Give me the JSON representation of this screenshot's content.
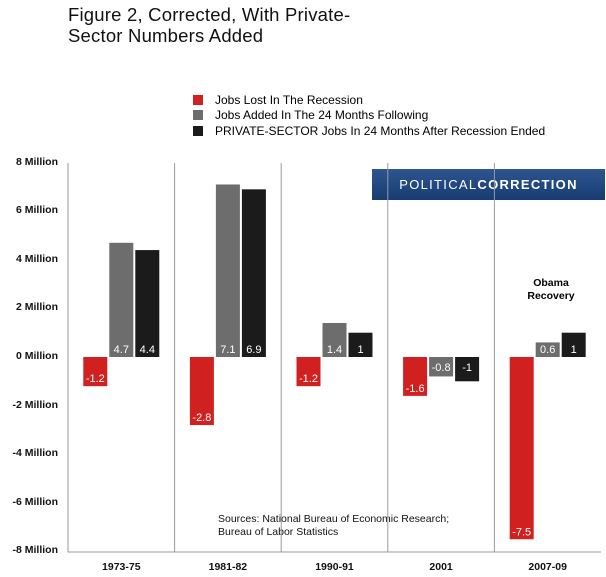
{
  "title_lines": [
    "Figure 2, Corrected, With Private-",
    "Sector Numbers Added"
  ],
  "brand": {
    "part1": "POLITICAL",
    "part2": "CORRECTION"
  },
  "annotation_lines": [
    "Obama",
    "Recovery"
  ],
  "source_lines": [
    "Sources: National Bureau of Economic Research;",
    "Bureau of Labor Statistics"
  ],
  "colors": {
    "lost": "#d0201f",
    "added": "#6d6d6d",
    "private": "#1b1b1b"
  },
  "chart_data": {
    "type": "bar",
    "title": "Figure 2, Corrected, With Private-Sector Numbers Added",
    "categories": [
      "1973-75",
      "1981-82",
      "1990-91",
      "2001",
      "2007-09"
    ],
    "series": [
      {
        "name": "Jobs Lost In The Recession",
        "color": "#d0201f",
        "values": [
          -1.2,
          -2.8,
          -1.2,
          -1.6,
          -7.5
        ],
        "labels": [
          "-1.2",
          "-2.8",
          "-1.2",
          "-1.6",
          "-7.5"
        ]
      },
      {
        "name": "Jobs Added In The 24 Months Following",
        "color": "#6d6d6d",
        "values": [
          4.7,
          7.1,
          1.4,
          -0.8,
          0.6
        ],
        "labels": [
          "4.7",
          "7.1",
          "1.4",
          "-0.8",
          "0.6"
        ]
      },
      {
        "name": "PRIVATE-SECTOR Jobs In 24 Months After Recession Ended",
        "color": "#1b1b1b",
        "values": [
          4.4,
          6.9,
          1,
          -1,
          1
        ],
        "labels": [
          "4.4",
          "6.9",
          "1",
          "-1",
          "1"
        ]
      }
    ],
    "yticks": [
      8,
      6,
      4,
      2,
      0,
      -2,
      -4,
      -6,
      -8
    ],
    "ytick_labels": [
      "8 Million",
      "6 Million",
      "4 Million",
      "2 Million",
      "0 Million",
      "-2 Million",
      "-4 Million",
      "-6 Million",
      "-8 Million"
    ],
    "ylim": [
      -8,
      8
    ],
    "unit": "Million",
    "grid": false,
    "legend_position": "top"
  }
}
